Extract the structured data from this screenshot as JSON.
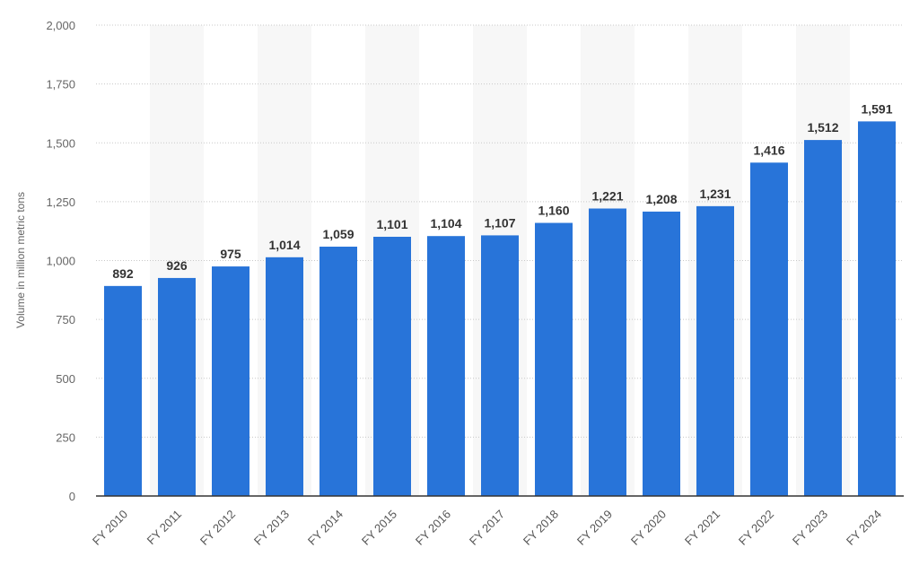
{
  "chart_data": {
    "type": "bar",
    "title": "",
    "xlabel": "",
    "ylabel": "Volume in million metric tons",
    "ylim": [
      0,
      2000
    ],
    "yticks": [
      0,
      250,
      500,
      750,
      1000,
      1250,
      1500,
      1750,
      2000
    ],
    "ytick_labels": [
      "0",
      "250",
      "500",
      "750",
      "1,000",
      "1,250",
      "1,500",
      "1,750",
      "2,000"
    ],
    "grid": true,
    "legend": "none",
    "bar_color": "#2874d9",
    "categories": [
      "FY 2010",
      "FY 2011",
      "FY 2012",
      "FY 2013",
      "FY 2014",
      "FY 2015",
      "FY 2016",
      "FY 2017",
      "FY 2018",
      "FY 2019",
      "FY 2020",
      "FY 2021",
      "FY 2022",
      "FY 2023",
      "FY 2024"
    ],
    "values": [
      892,
      926,
      975,
      1014,
      1059,
      1101,
      1104,
      1107,
      1160,
      1221,
      1208,
      1231,
      1416,
      1512,
      1591
    ],
    "data_labels": [
      "892",
      "926",
      "975",
      "1,014",
      "1,059",
      "1,101",
      "1,104",
      "1,107",
      "1,160",
      "1,221",
      "1,208",
      "1,231",
      "1,416",
      "1,512",
      "1,591"
    ]
  }
}
